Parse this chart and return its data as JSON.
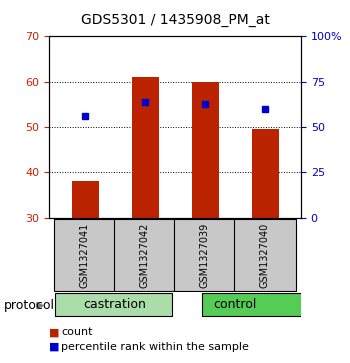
{
  "title": "GDS5301 / 1435908_PM_at",
  "samples": [
    "GSM1327041",
    "GSM1327042",
    "GSM1327039",
    "GSM1327040"
  ],
  "bar_bottom": 30,
  "bar_tops": [
    38.0,
    61.0,
    60.0,
    49.5
  ],
  "percentile_values": [
    52.5,
    55.5,
    55.0,
    54.0
  ],
  "ylim_left": [
    30,
    70
  ],
  "ylim_right": [
    0,
    100
  ],
  "left_ticks": [
    30,
    40,
    50,
    60,
    70
  ],
  "right_ticks": [
    0,
    25,
    50,
    75,
    100
  ],
  "right_tick_labels": [
    "0",
    "25",
    "50",
    "75",
    "100%"
  ],
  "bar_color": "#BB2200",
  "dot_color": "#0000CC",
  "left_tick_color": "#CC2200",
  "right_tick_color": "#0000CC",
  "sample_box_color": "#C8C8C8",
  "castration_color": "#AADDAA",
  "control_color": "#55CC55",
  "legend_count_color": "#BB2200",
  "legend_pct_color": "#0000CC",
  "title_fontsize": 10,
  "tick_fontsize": 8,
  "sample_fontsize": 7,
  "group_fontsize": 9,
  "legend_fontsize": 8
}
